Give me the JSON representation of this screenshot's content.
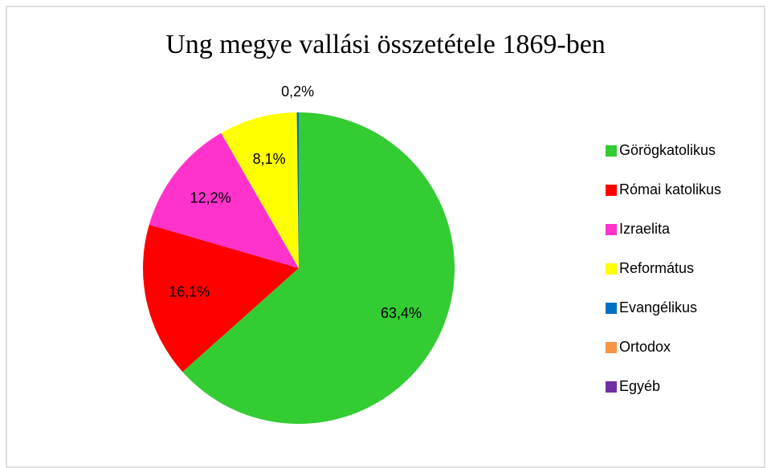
{
  "chart_data": {
    "type": "pie",
    "title": "Ung megye vallási összetétele 1869-ben",
    "categories": [
      "Görögkatolikus",
      "Római katolikus",
      "Izraelita",
      "Református",
      "Evangélikus",
      "Ortodox",
      "Egyéb"
    ],
    "values": [
      63.4,
      16.1,
      12.2,
      8.1,
      0.2,
      0,
      0
    ],
    "value_labels": [
      "63,4%",
      "16,1%",
      "12,2%",
      "8,1%",
      "0,2%",
      null,
      null
    ],
    "colors": [
      "#33cc33",
      "#ff0000",
      "#ff33cc",
      "#ffff00",
      "#0070c0",
      "#f79646",
      "#7030a0"
    ],
    "legend": "right"
  }
}
